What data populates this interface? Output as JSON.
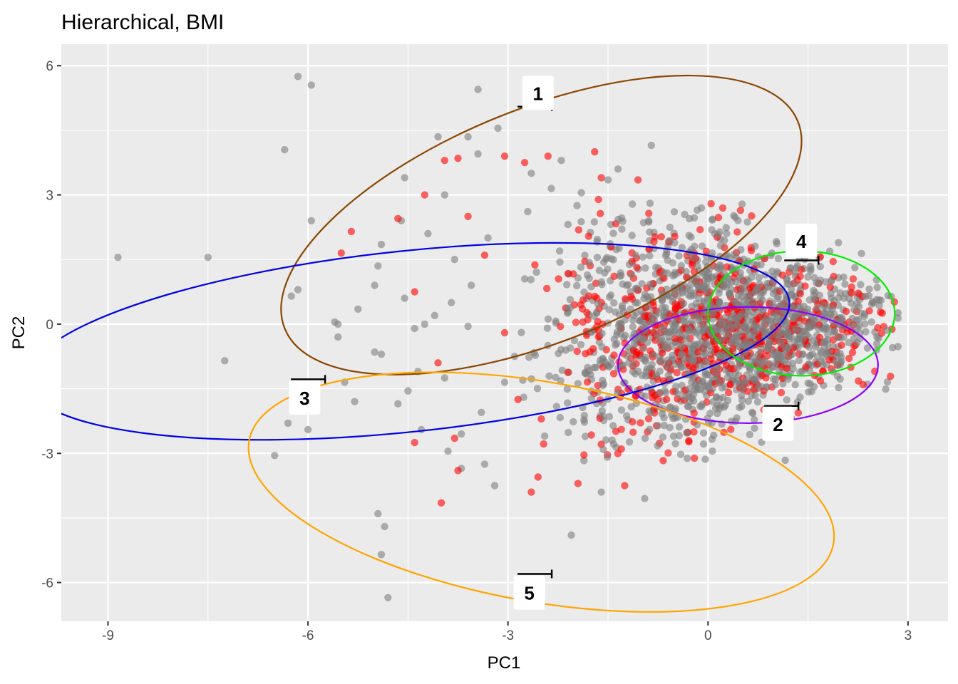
{
  "chart_data": {
    "type": "scatter",
    "title": "Hierarchical, BMI",
    "xlabel": "PC1",
    "ylabel": "PC2",
    "xlim": [
      -9.7,
      3.6
    ],
    "ylim": [
      -6.9,
      6.5
    ],
    "x_ticks": [
      -9,
      -6,
      -3,
      0,
      3
    ],
    "x_tick_labels": [
      "-9",
      "-6",
      "-3",
      "0",
      "3"
    ],
    "y_ticks": [
      -6,
      -3,
      0,
      3,
      6
    ],
    "y_tick_labels": [
      "-6",
      "-3",
      "0",
      "3",
      "6"
    ],
    "grid": true,
    "background": "#ebebeb",
    "point_colors": {
      "grey": "#7f7f7f",
      "red": "#ff0000"
    },
    "point_opacity": 0.6,
    "bulk_cloud": {
      "description_note": "",
      "grey_count": 1500,
      "red_count": 520,
      "center": [
        0.3,
        0.0
      ],
      "x_range": [
        -2.8,
        2.9
      ],
      "y_range": [
        -3.2,
        2.9
      ]
    },
    "sparse_points_grey": [
      [
        -8.85,
        1.55
      ],
      [
        -7.5,
        1.55
      ],
      [
        -7.25,
        -0.85
      ],
      [
        -6.15,
        5.75
      ],
      [
        -5.95,
        5.55
      ],
      [
        -6.35,
        4.05
      ],
      [
        -5.95,
        2.4
      ],
      [
        -6.15,
        0.8
      ],
      [
        -6.25,
        0.65
      ],
      [
        -6.3,
        -2.3
      ],
      [
        -6.5,
        -3.05
      ],
      [
        -6.0,
        -2.45
      ],
      [
        -5.55,
        0.0
      ],
      [
        -5.55,
        -0.3
      ],
      [
        -5.6,
        0.05
      ],
      [
        -5.45,
        -1.35
      ],
      [
        -5.25,
        0.35
      ],
      [
        -5.3,
        -1.8
      ],
      [
        -5.0,
        0.9
      ],
      [
        -4.95,
        1.35
      ],
      [
        -4.9,
        1.85
      ],
      [
        -4.6,
        2.4
      ],
      [
        -4.55,
        0.6
      ],
      [
        -4.4,
        -0.1
      ],
      [
        -4.25,
        0.0
      ],
      [
        -4.1,
        0.2
      ],
      [
        -4.9,
        -0.7
      ],
      [
        -5.0,
        -0.65
      ],
      [
        -4.95,
        -4.4
      ],
      [
        -4.85,
        -4.7
      ],
      [
        -4.9,
        -5.35
      ],
      [
        -4.8,
        -6.35
      ],
      [
        -4.5,
        -1.55
      ],
      [
        -4.65,
        -1.85
      ],
      [
        -4.3,
        -2.45
      ],
      [
        -3.85,
        0.5
      ],
      [
        -3.95,
        3.0
      ],
      [
        -4.05,
        4.35
      ],
      [
        -3.6,
        4.35
      ],
      [
        -3.45,
        3.95
      ],
      [
        -3.15,
        4.55
      ],
      [
        -3.45,
        5.45
      ],
      [
        -3.7,
        -2.55
      ],
      [
        -3.9,
        -2.95
      ],
      [
        -3.7,
        -3.35
      ],
      [
        -3.35,
        -3.25
      ],
      [
        -3.2,
        -3.75
      ],
      [
        -2.45,
        -2.6
      ],
      [
        -2.05,
        -4.9
      ],
      [
        -1.6,
        -3.9
      ],
      [
        -0.85,
        4.15
      ],
      [
        -1.9,
        3.05
      ],
      [
        -1.5,
        3.35
      ],
      [
        -1.35,
        3.6
      ],
      [
        -2.65,
        3.5
      ],
      [
        -2.2,
        3.8
      ],
      [
        -0.95,
        -4.05
      ],
      [
        -4.55,
        3.4
      ],
      [
        -4.2,
        2.1
      ],
      [
        -3.8,
        1.5
      ],
      [
        -3.3,
        2.0
      ],
      [
        -3.55,
        0.9
      ],
      [
        -2.9,
        -0.75
      ],
      [
        -3.05,
        -1.35
      ],
      [
        -2.75,
        1.05
      ],
      [
        -3.6,
        -0.05
      ],
      [
        -3.95,
        -1.25
      ],
      [
        -3.4,
        -2.05
      ],
      [
        -4.35,
        -1.1
      ],
      [
        -2.35,
        3.15
      ]
    ],
    "sparse_points_red": [
      [
        -5.35,
        2.15
      ],
      [
        -5.5,
        1.65
      ],
      [
        -4.65,
        2.45
      ],
      [
        -4.4,
        0.75
      ],
      [
        -4.25,
        3.0
      ],
      [
        -3.95,
        3.8
      ],
      [
        -3.75,
        3.85
      ],
      [
        -3.6,
        2.5
      ],
      [
        -3.35,
        1.6
      ],
      [
        -3.05,
        3.9
      ],
      [
        -2.75,
        3.75
      ],
      [
        -2.4,
        3.9
      ],
      [
        -1.7,
        4.0
      ],
      [
        -1.6,
        3.4
      ],
      [
        -1.05,
        3.35
      ],
      [
        -3.8,
        -2.65
      ],
      [
        -3.75,
        -3.4
      ],
      [
        -4.4,
        -2.75
      ],
      [
        -4.0,
        -4.15
      ],
      [
        -2.55,
        -3.55
      ],
      [
        -2.65,
        -3.9
      ],
      [
        -1.95,
        -3.7
      ],
      [
        -1.25,
        -3.75
      ],
      [
        -2.85,
        -1.75
      ],
      [
        -3.05,
        -0.2
      ],
      [
        -1.6,
        0.5
      ],
      [
        -0.15,
        0.25
      ],
      [
        -4.05,
        -0.9
      ],
      [
        -2.5,
        -2.2
      ],
      [
        -1.3,
        -2.9
      ]
    ],
    "ellipses": [
      {
        "label": "1",
        "color": "#8b4500",
        "center": [
          -2.5,
          2.3
        ],
        "rx": 4.15,
        "ry": 2.7,
        "angle_deg": -22,
        "label_pos": [
          -2.55,
          5.35
        ],
        "marker": [
          -2.6,
          5.05
        ]
      },
      {
        "label": "2",
        "color": "#8a00ff",
        "center": [
          0.6,
          -0.95
        ],
        "rx": 1.95,
        "ry": 1.35,
        "angle_deg": 0,
        "label_pos": [
          1.05,
          -2.33
        ],
        "marker": [
          1.1,
          -1.9
        ]
      },
      {
        "label": "3",
        "color": "#0000e6",
        "center": [
          -4.5,
          -0.4
        ],
        "rx": 5.75,
        "ry": 2.1,
        "angle_deg": -6,
        "label_pos": [
          -6.05,
          -1.72
        ],
        "marker": [
          -6.0,
          -1.28
        ]
      },
      {
        "label": "4",
        "color": "#00ee00",
        "center": [
          1.4,
          0.25
        ],
        "rx": 1.4,
        "ry": 1.45,
        "angle_deg": 0,
        "label_pos": [
          1.4,
          1.92
        ],
        "marker": [
          1.4,
          1.48
        ]
      },
      {
        "label": "5",
        "color": "#ffa500",
        "center": [
          -2.5,
          -3.9
        ],
        "rx": 4.45,
        "ry": 2.55,
        "angle_deg": 10,
        "label_pos": [
          -2.68,
          -6.25
        ],
        "marker": [
          -2.6,
          -5.8
        ]
      }
    ]
  }
}
